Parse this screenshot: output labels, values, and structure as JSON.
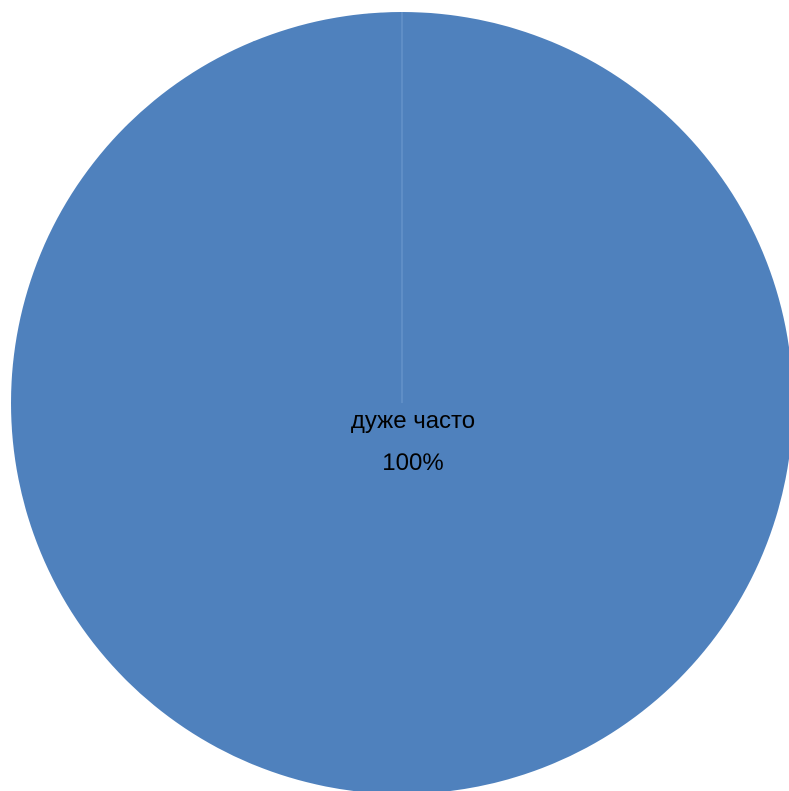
{
  "chart_data": {
    "type": "pie",
    "title": "",
    "series": [
      {
        "values": [
          100
        ]
      }
    ],
    "slices": [
      {
        "label": "дуже часто",
        "value": 100,
        "percent_label": "100%",
        "color": "#4f81bd"
      }
    ],
    "legend": "none"
  }
}
